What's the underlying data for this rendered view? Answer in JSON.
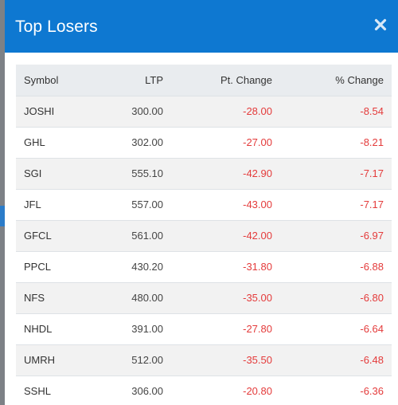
{
  "modal": {
    "title": "Top Losers",
    "close_icon": "close-icon"
  },
  "colors": {
    "header_bg": "#0e78d1",
    "negative": "#e43b3b",
    "stripe": "#f2f2f2",
    "table_header_bg": "#e9ecef"
  },
  "table": {
    "headers": [
      "Symbol",
      "LTP",
      "Pt. Change",
      "% Change"
    ],
    "rows": [
      {
        "symbol": "JOSHI",
        "ltp": "300.00",
        "pt_change": "-28.00",
        "pct_change": "-8.54"
      },
      {
        "symbol": "GHL",
        "ltp": "302.00",
        "pt_change": "-27.00",
        "pct_change": "-8.21"
      },
      {
        "symbol": "SGI",
        "ltp": "555.10",
        "pt_change": "-42.90",
        "pct_change": "-7.17"
      },
      {
        "symbol": "JFL",
        "ltp": "557.00",
        "pt_change": "-43.00",
        "pct_change": "-7.17"
      },
      {
        "symbol": "GFCL",
        "ltp": "561.00",
        "pt_change": "-42.00",
        "pct_change": "-6.97"
      },
      {
        "symbol": "PPCL",
        "ltp": "430.20",
        "pt_change": "-31.80",
        "pct_change": "-6.88"
      },
      {
        "symbol": "NFS",
        "ltp": "480.00",
        "pt_change": "-35.00",
        "pct_change": "-6.80"
      },
      {
        "symbol": "NHDL",
        "ltp": "391.00",
        "pt_change": "-27.80",
        "pct_change": "-6.64"
      },
      {
        "symbol": "UMRH",
        "ltp": "512.00",
        "pt_change": "-35.50",
        "pct_change": "-6.48"
      },
      {
        "symbol": "SSHL",
        "ltp": "306.00",
        "pt_change": "-20.80",
        "pct_change": "-6.36"
      }
    ]
  }
}
